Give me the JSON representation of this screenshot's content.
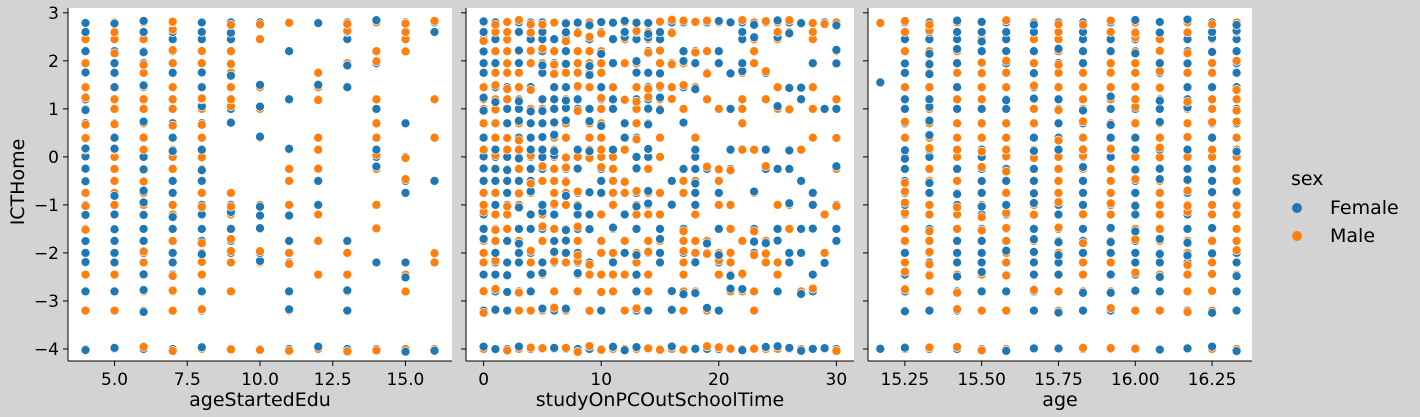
{
  "chart_data": {
    "type": "scatter",
    "hue": "sex",
    "legend": {
      "title": "sex",
      "placement": "right",
      "entries": [
        {
          "name": "Female",
          "color": "#1f77b4"
        },
        {
          "name": "Male",
          "color": "#ff7f0e"
        }
      ]
    },
    "ylabel": "ICTHome",
    "ylim": [
      -4.25,
      3.1
    ],
    "yticks": [
      3,
      2,
      1,
      0,
      -1,
      -2,
      -3,
      -4
    ],
    "ytick_labels": [
      "3",
      "2",
      "1",
      "0",
      "−1",
      "−2",
      "−3",
      "−4"
    ],
    "panels": [
      {
        "xlabel": "ageStartedEdu",
        "xlim": [
          3.4,
          16.6
        ],
        "xticks": [
          5,
          7.5,
          10,
          12.5,
          15
        ],
        "xtick_labels": [
          "5.0",
          "7.5",
          "10.0",
          "12.5",
          "15.0"
        ],
        "x_values": [
          4,
          5,
          6,
          7,
          8,
          9,
          10,
          11,
          12,
          13,
          14,
          15,
          16
        ]
      },
      {
        "xlabel": "studyOnPCOutSchoolTime",
        "xlim": [
          -1.5,
          31.5
        ],
        "xticks": [
          0,
          10,
          20,
          30
        ],
        "xtick_labels": [
          "0",
          "10",
          "20",
          "30"
        ],
        "x_values": [
          0,
          1,
          2,
          3,
          4,
          5,
          6,
          7,
          8,
          9,
          10,
          11,
          12,
          13,
          14,
          15,
          16,
          17,
          18,
          19,
          20,
          21,
          22,
          23,
          24,
          25,
          26,
          27,
          28,
          29,
          30
        ]
      },
      {
        "xlabel": "age",
        "xlim": [
          15.13,
          16.38
        ],
        "xticks": [
          15.25,
          15.5,
          15.75,
          16,
          16.25
        ],
        "xtick_labels": [
          "15.25",
          "15.50",
          "15.75",
          "16.00",
          "16.25"
        ],
        "x_values": [
          15.17,
          15.25,
          15.33,
          15.42,
          15.5,
          15.58,
          15.67,
          15.75,
          15.83,
          15.92,
          16.0,
          16.08,
          16.17,
          16.25,
          16.33
        ]
      }
    ]
  }
}
